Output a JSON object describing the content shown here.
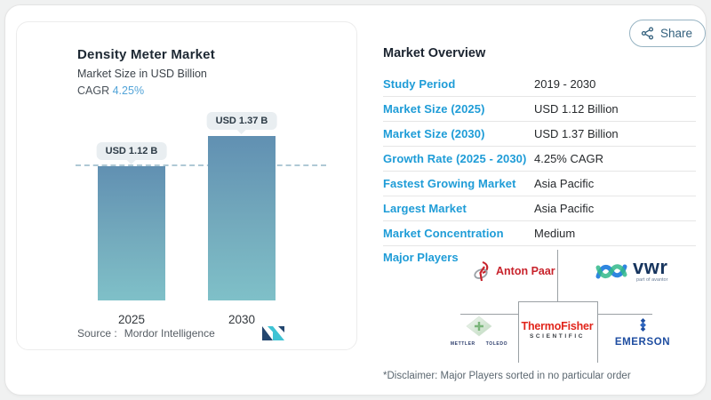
{
  "window": {
    "share_label": "Share"
  },
  "chart_panel": {
    "title": "Density Meter Market",
    "subtitle": "Market Size in USD Billion",
    "cagr_label": "CAGR",
    "cagr_value": "4.25%",
    "source_label": "Source :",
    "source_name": "Mordor Intelligence"
  },
  "chart_data": {
    "type": "bar",
    "title": "Density Meter Market",
    "ylabel": "Market Size in USD Billion",
    "categories": [
      "2025",
      "2030"
    ],
    "values": [
      1.12,
      1.37
    ],
    "value_labels": [
      "USD 1.12 B",
      "USD 1.37 B"
    ],
    "unit": "USD Billion",
    "growth_rate_cagr_pct": 4.25,
    "reference_line_at": 1.12,
    "ylim": [
      0,
      1.37
    ],
    "grid": false,
    "legend": false
  },
  "overview": {
    "title": "Market Overview",
    "rows": [
      {
        "label": "Study Period",
        "value": "2019 - 2030"
      },
      {
        "label": "Market Size (2025)",
        "value": "USD 1.12 Billion"
      },
      {
        "label": "Market Size (2030)",
        "value": "USD 1.37 Billion"
      },
      {
        "label": "Growth Rate (2025 - 2030)",
        "value": "4.25% CAGR"
      },
      {
        "label": "Fastest Growing Market",
        "value": "Asia Pacific"
      },
      {
        "label": "Largest Market",
        "value": "Asia Pacific"
      },
      {
        "label": "Market Concentration",
        "value": "Medium"
      }
    ],
    "major_players_label": "Major Players",
    "players": [
      "Anton Paar",
      "VWR",
      "Mettler Toledo",
      "Thermo Fisher Scientific",
      "Emerson"
    ],
    "disclaimer": "*Disclaimer: Major Players sorted in no particular order"
  },
  "logos": {
    "anton_paar": "Anton Paar",
    "vwr": "vwr",
    "vwr_tagline": "part of avantor",
    "mettler_toledo": "METTLER TOLEDO",
    "thermo_fisher_line1": "ThermoFisher",
    "thermo_fisher_line2": "SCIENTIFIC",
    "emerson": "EMERSON"
  },
  "colors": {
    "accent_blue": "#1e9cd7",
    "cagr_blue": "#53a4d8",
    "bar_top": "#6190b2",
    "bar_bottom": "#7fc0c8",
    "badge_bg": "#e9eef1",
    "reference_line": "#afc9d5",
    "share_teal": "#33607d",
    "anton_paar_red": "#c8232c",
    "thermo_red": "#e1251b",
    "emerson_blue": "#1f4ea1",
    "vwr_navy": "#17355e",
    "mordor_navy": "#23466f",
    "mordor_teal": "#3fc3d4"
  }
}
